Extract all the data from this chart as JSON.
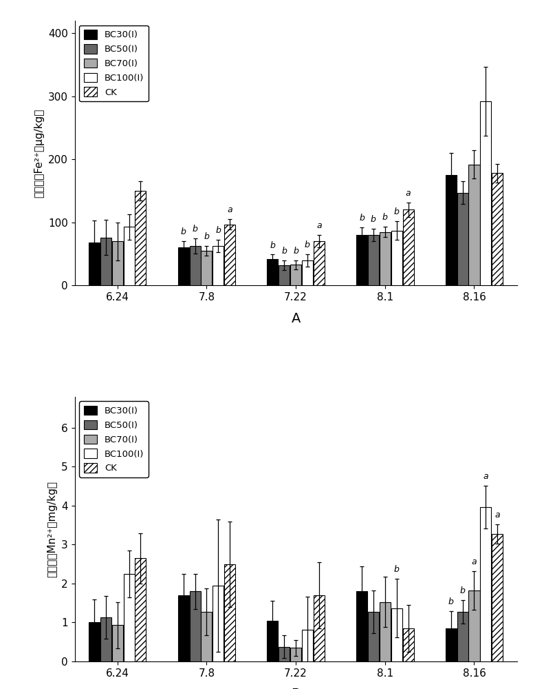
{
  "categories": [
    "6.24",
    "7.8",
    "7.22",
    "8.1",
    "8.16"
  ],
  "chart_A": {
    "title": "A",
    "ylabel": "孔隙水中Fe²⁺（μg/kg）",
    "ylim": [
      0,
      420
    ],
    "yticks": [
      0,
      100,
      200,
      300,
      400
    ],
    "values": {
      "BC30": [
        68,
        60,
        42,
        80,
        175
      ],
      "BC50": [
        76,
        63,
        32,
        80,
        147
      ],
      "BC70": [
        70,
        55,
        33,
        85,
        192
      ],
      "BC100": [
        93,
        63,
        40,
        87,
        292
      ],
      "CK": [
        150,
        97,
        70,
        120,
        178
      ]
    },
    "errors": {
      "BC30": [
        35,
        10,
        7,
        12,
        35
      ],
      "BC50": [
        28,
        12,
        8,
        10,
        18
      ],
      "BC70": [
        30,
        8,
        7,
        8,
        22
      ],
      "BC100": [
        20,
        10,
        10,
        15,
        55
      ],
      "CK": [
        15,
        8,
        10,
        12,
        15
      ]
    },
    "sig_labels": {
      "6.24": [
        "",
        "",
        "",
        "",
        ""
      ],
      "7.8": [
        "b",
        "b",
        "b",
        "b",
        "a"
      ],
      "7.22": [
        "b",
        "b",
        "b",
        "b",
        "a"
      ],
      "8.1": [
        "b",
        "b",
        "b",
        "b",
        "a"
      ],
      "8.16": [
        "",
        "",
        "",
        "",
        ""
      ]
    }
  },
  "chart_B": {
    "title": "B",
    "ylabel": "孔隙水中Mn²⁺（mg/kg）",
    "ylim": [
      0,
      6.8
    ],
    "yticks": [
      0,
      1,
      2,
      3,
      4,
      5,
      6
    ],
    "values": {
      "BC30": [
        1.0,
        1.7,
        1.05,
        1.8,
        0.85
      ],
      "BC50": [
        1.13,
        1.8,
        0.38,
        1.28,
        1.27
      ],
      "BC70": [
        0.93,
        1.28,
        0.35,
        1.53,
        1.82
      ],
      "BC100": [
        2.25,
        1.95,
        0.82,
        1.37,
        3.97
      ],
      "CK": [
        2.65,
        2.5,
        1.7,
        0.85,
        3.27
      ]
    },
    "errors": {
      "BC30": [
        0.6,
        0.55,
        0.5,
        0.65,
        0.45
      ],
      "BC50": [
        0.55,
        0.45,
        0.3,
        0.55,
        0.3
      ],
      "BC70": [
        0.6,
        0.6,
        0.2,
        0.65,
        0.5
      ],
      "BC100": [
        0.6,
        1.7,
        0.85,
        0.75,
        0.55
      ],
      "CK": [
        0.65,
        1.1,
        0.85,
        0.6,
        0.25
      ]
    },
    "sig_labels": {
      "6.24": [
        "",
        "",
        "",
        "",
        ""
      ],
      "7.8": [
        "",
        "",
        "",
        "",
        ""
      ],
      "7.22": [
        "",
        "",
        "",
        "",
        ""
      ],
      "8.1": [
        "",
        "",
        "",
        "b",
        ""
      ],
      "8.16": [
        "b",
        "b",
        "a",
        "a",
        "a"
      ]
    }
  },
  "legend_labels": [
    "BC30(I)",
    "BC50(I)",
    "BC70(I)",
    "BC100(I)",
    "CK"
  ],
  "series_keys": [
    "BC30",
    "BC50",
    "BC70",
    "BC100",
    "CK"
  ],
  "bar_width": 0.13,
  "fontsize": 11,
  "tick_fontsize": 11,
  "sig_fontsize": 9
}
